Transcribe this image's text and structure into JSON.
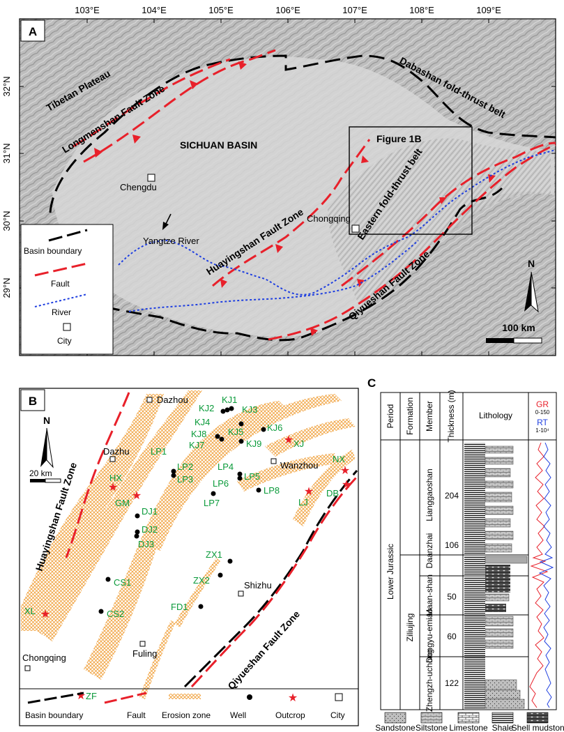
{
  "panelA": {
    "letter": "A",
    "lon_ticks": [
      "103°E",
      "104°E",
      "105°E",
      "106°E",
      "107°E",
      "108°E",
      "109°E"
    ],
    "lat_ticks": [
      "32°N",
      "31°N",
      "30°N",
      "29°N"
    ],
    "labels": {
      "tibetan": "Tibetan Plateau",
      "longmenshan": "Longmenshan Fault Zone",
      "dabashan": "Dabashan fold-thrust belt",
      "sichuan": "SICHUAN BASIN",
      "fig1b": "Figure 1B",
      "eastern": "Eastern fold-thrust belt",
      "chengdu": "Chengdu",
      "chongqing": "Chongqing",
      "yangtze": "Yangtze River",
      "huaying": "Huayingshan Fault Zone",
      "qiyue": "Qiyueshan Fault Zone",
      "north": "N",
      "scale": "100 km"
    },
    "legend": [
      "Basin boundary",
      "Fault",
      "River",
      "City"
    ]
  },
  "panelB": {
    "letter": "B",
    "labels": {
      "huaying": "Huayingshan Fault Zone",
      "qiyue": "Qiyueshan Fault Zone",
      "north": "N",
      "scale": "20 km"
    },
    "cities": [
      "Dazhou",
      "Dazhu",
      "Wanzhou",
      "Shizhu",
      "Fuling",
      "Chongqing"
    ],
    "wells": [
      "KJ1",
      "KJ2",
      "KJ3",
      "KJ4",
      "KJ5",
      "KJ6",
      "KJ8",
      "KJ7",
      "KJ9",
      "LP1",
      "LP2",
      "LP3",
      "LP4",
      "LP5",
      "LP6",
      "LP7",
      "LP8",
      "DJ1",
      "DJ2",
      "DJ3",
      "ZX1",
      "ZX2",
      "CS1",
      "CS2",
      "FD1"
    ],
    "outcrops": [
      "XJ",
      "NX",
      "DB",
      "LJ",
      "HX",
      "GM",
      "XL",
      "ZF"
    ],
    "legend": [
      "Basin boundary",
      "Fault",
      "Erosion zone",
      "Well",
      "Outcrop",
      "City"
    ]
  },
  "panelC": {
    "letter": "C",
    "headers": [
      "Period",
      "Formation",
      "Member",
      "Thickness (m)",
      "Lithology"
    ],
    "log_gr": "GR",
    "log_gr_range": "0-150",
    "log_rt": "RT",
    "log_rt_range": "1-10⁴",
    "period": "Lower Jurassic",
    "formation": "Ziliujing",
    "members": [
      {
        "name": "Lianggaoshan",
        "thickness": "204"
      },
      {
        "name": "Daanzhai",
        "thickness": "106"
      },
      {
        "name": "Maan-shan",
        "thickness": "50"
      },
      {
        "name": "Dongyu-emiao",
        "thickness": "60"
      },
      {
        "name": "Zhengzh-uchong",
        "thickness": "122"
      }
    ],
    "lith_legend": [
      "Sandstone",
      "Siltstone",
      "Limestone",
      "Shale",
      "Shell mudstone"
    ]
  }
}
